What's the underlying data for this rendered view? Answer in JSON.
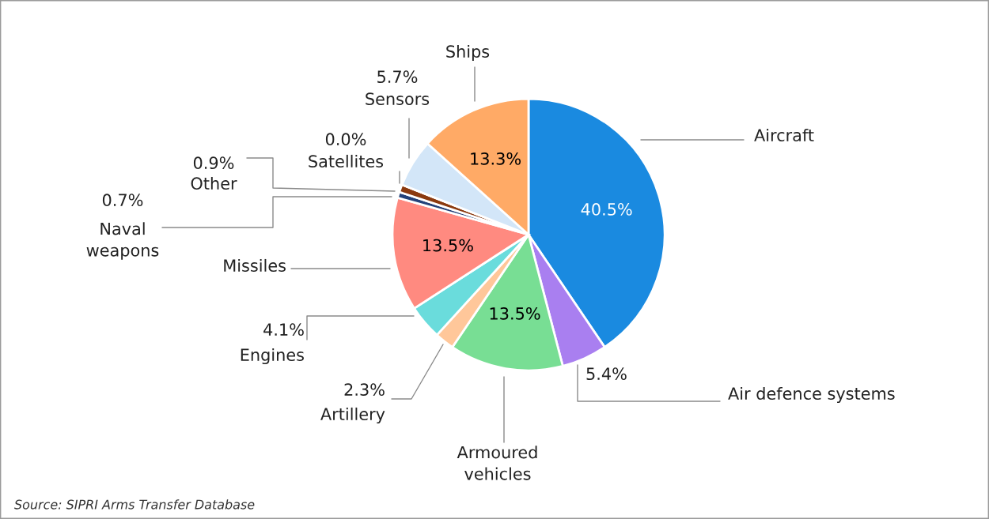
{
  "chart_data": {
    "type": "pie",
    "categories": [
      "Aircraft",
      "Air defence systems",
      "Armoured\nvehicles",
      "Artillery",
      "Engines",
      "Missiles",
      "Naval\nweapons",
      "Other",
      "Satellites",
      "Sensors",
      "Ships"
    ],
    "values": [
      40.5,
      5.4,
      13.5,
      2.3,
      4.1,
      13.5,
      0.7,
      0.9,
      0.0,
      5.7,
      13.3
    ],
    "colors": [
      "#1a8ae0",
      "#a97ff0",
      "#78de94",
      "#ffc79a",
      "#6adcdc",
      "#ff8a80",
      "#23427a",
      "#8b3a0f",
      "#7fb0e0",
      "#d3e6f8",
      "#ffaa66"
    ],
    "value_labels": [
      "40.5%",
      "5.4%",
      "13.5%",
      "2.3%",
      "4.1%",
      "13.5%",
      "0.7%",
      "0.9%",
      "0.0%",
      "5.7%",
      "13.3%"
    ],
    "annotations": [
      "Source: SIPRI Arms Transfer Database"
    ]
  }
}
